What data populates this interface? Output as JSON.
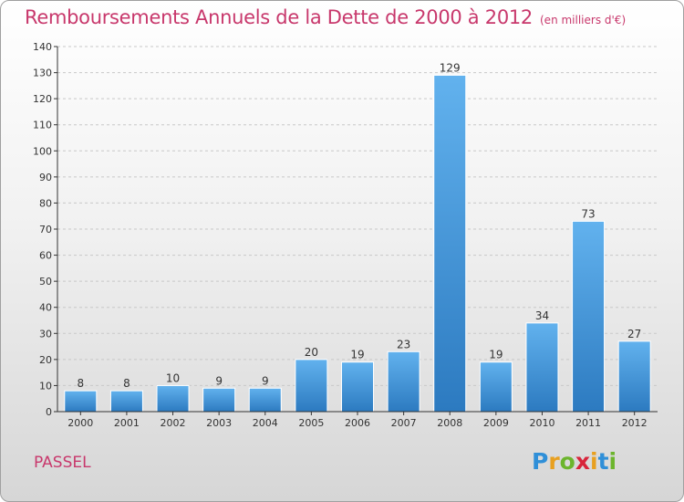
{
  "title": "Remboursements Annuels de la Dette de 2000 à 2012",
  "subtitle": "(en milliers d'€)",
  "place_name": "PASSEL",
  "logo": {
    "letters": [
      "P",
      "r",
      "o",
      "x",
      "i",
      "t",
      "i"
    ],
    "colors": [
      "#2f8fd8",
      "#e8a020",
      "#6cb52d",
      "#d8253b",
      "#e8a020",
      "#2f8fd8",
      "#6cb52d"
    ]
  },
  "colors": {
    "bar": "#3a8fd8",
    "bar_light": "#62b2ee",
    "bar_dark": "#2c7ac0",
    "title": "#c8386c",
    "grid": "#c8c8c8",
    "axis": "#333333"
  },
  "chart_data": {
    "type": "bar",
    "categories": [
      "2000",
      "2001",
      "2002",
      "2003",
      "2004",
      "2005",
      "2006",
      "2007",
      "2008",
      "2009",
      "2010",
      "2011",
      "2012"
    ],
    "values": [
      8,
      8,
      10,
      9,
      9,
      20,
      19,
      23,
      129,
      19,
      34,
      73,
      27
    ],
    "data_labels": [
      "8",
      "8",
      "10",
      "9",
      "9",
      "20",
      "19",
      "23",
      "129",
      "19",
      "34",
      "73",
      "27"
    ],
    "yticks": [
      0,
      10,
      20,
      30,
      40,
      50,
      60,
      70,
      80,
      90,
      100,
      110,
      120,
      130,
      140
    ],
    "ylim": [
      0,
      140
    ],
    "grid": true,
    "legend": "none"
  }
}
